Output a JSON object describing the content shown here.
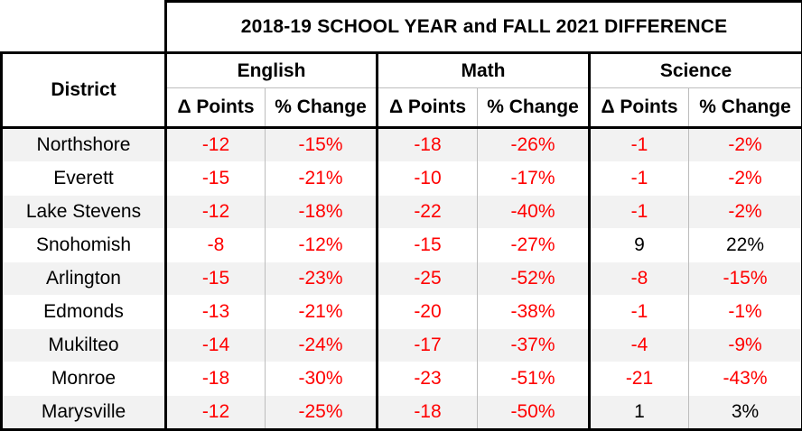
{
  "table": {
    "title": "2018-19 SCHOOL YEAR and FALL 2021 DIFFERENCE",
    "district_header": "District",
    "subjects": [
      "English",
      "Math",
      "Science"
    ],
    "sub_headers": {
      "english": [
        "Δ Points",
        "% Change"
      ],
      "math": [
        "Δ Points",
        "% Change"
      ],
      "science": [
        "Δ Points",
        "% Change"
      ]
    },
    "rows": [
      {
        "district": "Northshore",
        "values": [
          "-12",
          "-15%",
          "-18",
          "-26%",
          "-1",
          "-2%"
        ]
      },
      {
        "district": "Everett",
        "values": [
          "-15",
          "-21%",
          "-10",
          "-17%",
          "-1",
          "-2%"
        ]
      },
      {
        "district": "Lake Stevens",
        "values": [
          "-12",
          "-18%",
          "-22",
          "-40%",
          "-1",
          "-2%"
        ]
      },
      {
        "district": "Snohomish",
        "values": [
          "-8",
          "-12%",
          "-15",
          "-27%",
          "9",
          "22%"
        ]
      },
      {
        "district": "Arlington",
        "values": [
          "-15",
          "-23%",
          "-25",
          "-52%",
          "-8",
          "-15%"
        ]
      },
      {
        "district": "Edmonds",
        "values": [
          "-13",
          "-21%",
          "-20",
          "-38%",
          "-1",
          "-1%"
        ]
      },
      {
        "district": "Mukilteo",
        "values": [
          "-14",
          "-24%",
          "-17",
          "-37%",
          "-4",
          "-9%"
        ]
      },
      {
        "district": "Monroe",
        "values": [
          "-18",
          "-30%",
          "-23",
          "-51%",
          "-21",
          "-43%"
        ]
      },
      {
        "district": "Marysville",
        "values": [
          "-12",
          "-25%",
          "-18",
          "-50%",
          "1",
          "3%"
        ]
      }
    ],
    "colors": {
      "negative": "#ff0000",
      "positive": "#000000",
      "shaded_row": "#f2f2f2",
      "border": "#000000"
    }
  }
}
